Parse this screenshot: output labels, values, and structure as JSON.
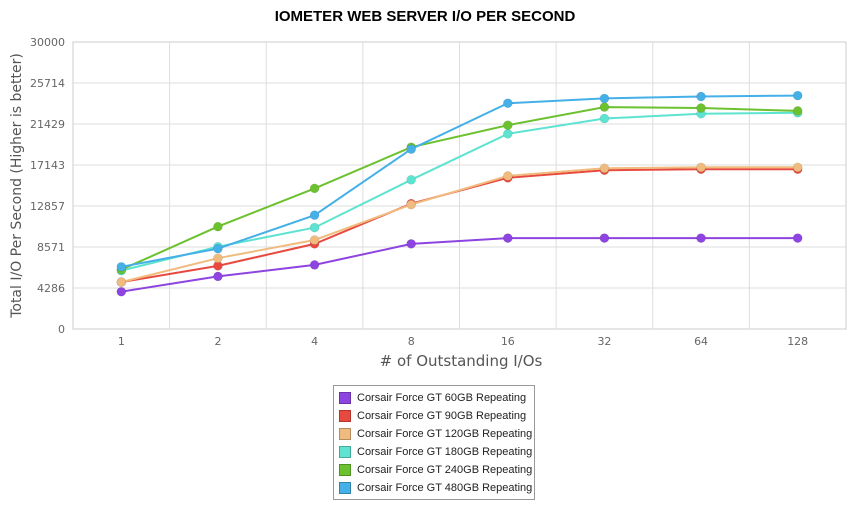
{
  "chart_data": {
    "type": "line",
    "title": "IOMETER WEB SERVER I/O PER SECOND",
    "xlabel": "# of Outstanding I/Os",
    "ylabel": "Total I/O Per Second (Higher is better)",
    "categories": [
      "1",
      "2",
      "4",
      "8",
      "16",
      "32",
      "64",
      "128"
    ],
    "yticks": [
      "0",
      "4286",
      "8571",
      "12857",
      "17143",
      "21429",
      "25714",
      "30000"
    ],
    "ylim": [
      0,
      30000
    ],
    "grid": true,
    "legend_position": "bottom",
    "series": [
      {
        "name": "Corsair Force GT 60GB Repeating",
        "color": "#8e44e0",
        "values": [
          3900,
          5500,
          6700,
          8900,
          9500,
          9500,
          9500,
          9500
        ]
      },
      {
        "name": "Corsair Force GT 90GB Repeating",
        "color": "#e8493f",
        "values": [
          4900,
          6600,
          8900,
          13100,
          15800,
          16600,
          16700,
          16700
        ]
      },
      {
        "name": "Corsair Force GT 120GB Repeating",
        "color": "#f0bb7e",
        "values": [
          4900,
          7400,
          9300,
          13000,
          16000,
          16800,
          16900,
          16900
        ]
      },
      {
        "name": "Corsair Force GT 180GB Repeating",
        "color": "#5de3d0",
        "values": [
          6100,
          8600,
          10600,
          15600,
          20400,
          22000,
          22500,
          22600
        ]
      },
      {
        "name": "Corsair Force GT 240GB Repeating",
        "color": "#6cc12e",
        "values": [
          6200,
          10700,
          14700,
          19000,
          21300,
          23200,
          23100,
          22800
        ]
      },
      {
        "name": "Corsair Force GT 480GB Repeating",
        "color": "#45b0e8",
        "values": [
          6500,
          8400,
          11900,
          18800,
          23600,
          24100,
          24300,
          24400
        ]
      }
    ]
  }
}
